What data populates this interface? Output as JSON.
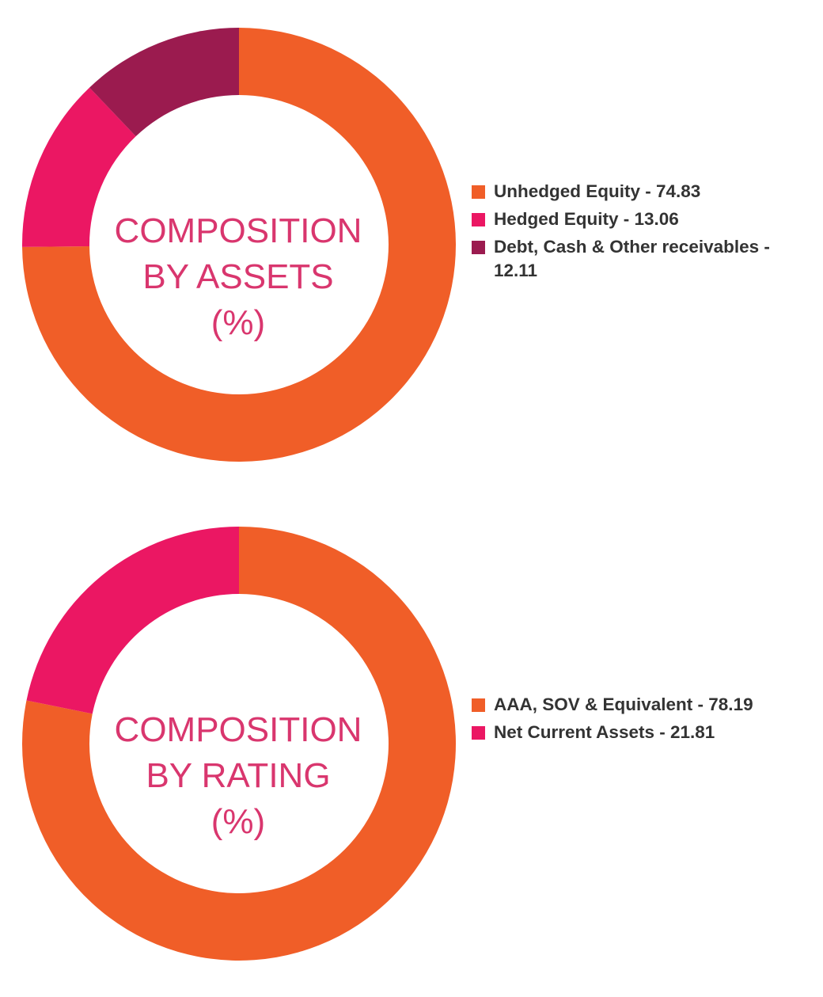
{
  "chart_data": [
    {
      "type": "pie",
      "donut": true,
      "title_lines": [
        "COMPOSITION",
        "BY ASSETS",
        "(%)"
      ],
      "categories": [
        "Unhedged Equity",
        "Hedged Equity",
        "Debt, Cash & Other receivables"
      ],
      "values": [
        74.83,
        13.06,
        12.11
      ],
      "colors": [
        "#f05e28",
        "#eb1763",
        "#9b1b4f"
      ],
      "legend_labels": [
        "Unhedged Equity - 74.83",
        "Hedged Equity - 13.06",
        "Debt, Cash & Other receivables - 12.11"
      ],
      "legend_position": "right"
    },
    {
      "type": "pie",
      "donut": true,
      "title_lines": [
        "COMPOSITION",
        "BY RATING",
        "(%)"
      ],
      "categories": [
        "AAA, SOV & Equivalent",
        "Net Current Assets"
      ],
      "values": [
        78.19,
        21.81
      ],
      "colors": [
        "#f05e28",
        "#eb1763"
      ],
      "legend_labels": [
        "AAA, SOV & Equivalent - 78.19",
        "Net Current Assets - 21.81"
      ],
      "legend_position": "right"
    }
  ]
}
